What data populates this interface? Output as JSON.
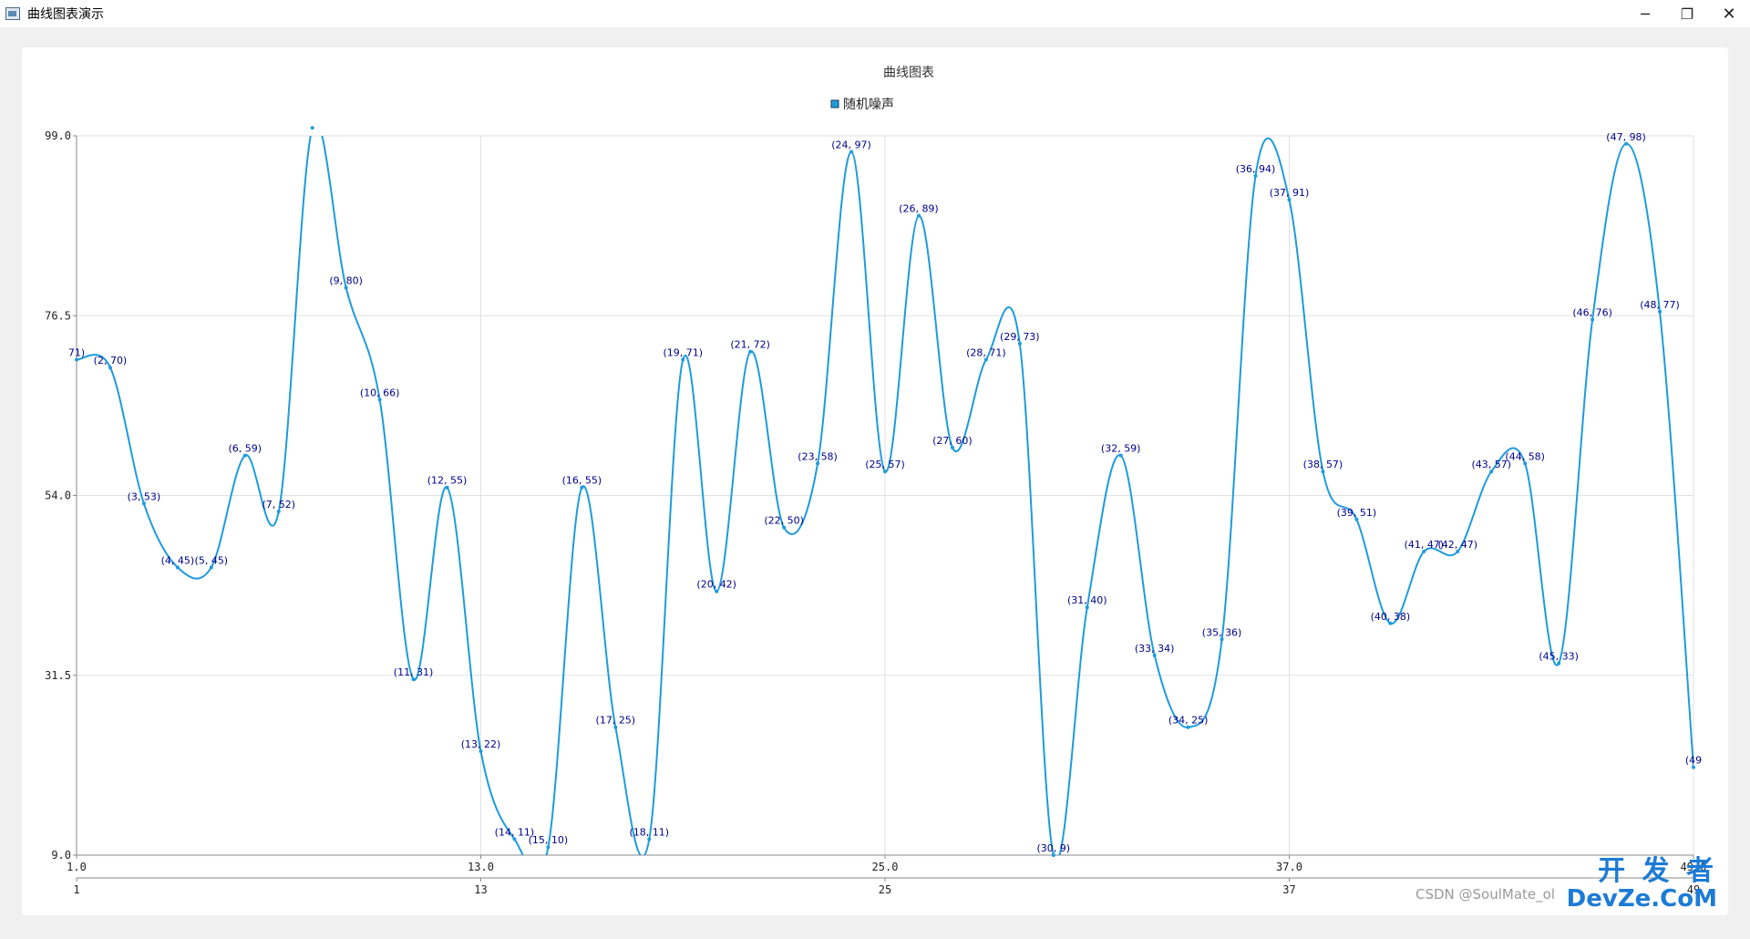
{
  "window": {
    "title": "曲线图表演示",
    "min_glyph": "─",
    "max_glyph": "❐",
    "close_glyph": "✕"
  },
  "colors": {
    "series": "#1e9bdc",
    "point_label": "#00008b",
    "grid": "#e2e2e2",
    "axis": "#888888"
  },
  "chart_data": {
    "type": "line",
    "smooth": true,
    "title": "曲线图表",
    "legend_position": "top-center",
    "grid": true,
    "series": [
      {
        "name": "随机噪声",
        "x": [
          1,
          2,
          3,
          4,
          5,
          6,
          7,
          8,
          9,
          10,
          11,
          12,
          13,
          14,
          15,
          16,
          17,
          18,
          19,
          20,
          21,
          22,
          23,
          24,
          25,
          26,
          27,
          28,
          29,
          30,
          31,
          32,
          33,
          34,
          35,
          36,
          37,
          38,
          39,
          40,
          41,
          42,
          43,
          44,
          45,
          46,
          47,
          48,
          49
        ],
        "values": [
          71,
          70,
          53,
          45,
          45,
          59,
          52,
          100,
          80,
          66,
          31,
          55,
          22,
          11,
          10,
          55,
          25,
          11,
          71,
          42,
          72,
          50,
          58,
          97,
          57,
          89,
          60,
          71,
          73,
          9,
          40,
          59,
          34,
          25,
          36,
          94,
          91,
          57,
          51,
          38,
          47,
          47,
          57,
          58,
          33,
          76,
          98,
          77,
          20
        ]
      }
    ],
    "point_labels": [
      "71)",
      "(2, 70)",
      "(3, 53)",
      "(4, 45)",
      "(5, 45)",
      "(6, 59)",
      "(7, 52)",
      "",
      "(9, 80)",
      "(10, 66)",
      "(11, 31)",
      "(12, 55)",
      "(13, 22)",
      "(14, 11)",
      "(15, 10)",
      "(16, 55)",
      "(17, 25)",
      "(18, 11)",
      "(19, 71)",
      "(20, 42)",
      "(21, 72)",
      "(22, 50)",
      "(23, 58)",
      "(24, 97)",
      "(25, 57)",
      "(26, 89)",
      "(27, 60)",
      "(28, 71)",
      "(29, 73)",
      "(30, 9)",
      "(31, 40)",
      "(32, 59)",
      "(33, 34)",
      "(34, 25)",
      "(35, 36)",
      "(36, 94)",
      "(37, 91)",
      "(38, 57)",
      "(39, 51)",
      "(40, 38)",
      "(41, 47)",
      "(42, 47)",
      "(43, 57)",
      "(44, 58)",
      "(45, 33)",
      "(46, 76)",
      "(47, 98)",
      "(48, 77)",
      "(49"
    ],
    "y_axis": {
      "min": 9.0,
      "max": 99.0,
      "tick_values": [
        9.0,
        31.5,
        54.0,
        76.5,
        99.0
      ],
      "tick_labels": [
        "9.0",
        "31.5",
        "54.0",
        "76.5",
        "99.0"
      ]
    },
    "x_axis": {
      "min": 1.0,
      "max": 49.0,
      "tick_values": [
        1,
        13,
        25,
        37,
        49
      ],
      "tick_labels": [
        "1.0",
        "13.0",
        "25.0",
        "37.0",
        "49.0"
      ]
    },
    "x_category_axis": {
      "tick_values": [
        1,
        13,
        25,
        37,
        49
      ],
      "tick_labels": [
        "1",
        "13",
        "25",
        "37",
        "49"
      ]
    }
  },
  "watermark": {
    "brand": "开 发 者",
    "sub": "DevZe.CoM",
    "csdn": "CSDN @SoulMate_ol"
  }
}
